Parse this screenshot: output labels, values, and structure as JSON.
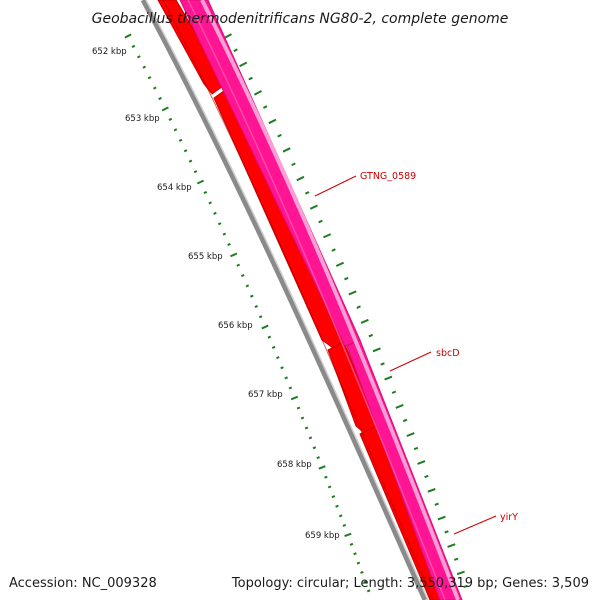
{
  "title": "Geobacillus thermodenitrificans NG80-2, complete genome",
  "footer": {
    "accession": "Accession: NC_009328",
    "summary": "Topology: circular; Length: 3,550,319 bp; Genes: 3,509"
  },
  "kbp_labels": [
    "652 kbp",
    "653 kbp",
    "654 kbp",
    "655 kbp",
    "656 kbp",
    "657 kbp",
    "658 kbp",
    "659 kbp"
  ],
  "gene_labels": [
    "GTNG_0589",
    "sbcD",
    "yirY"
  ],
  "colors": {
    "backbone": "#808080",
    "forward_gene": "#ff0000",
    "forward_gene_dark": "#c00000",
    "reverse_gene": "#ff1493",
    "reverse_gene_light": "#ff80c8",
    "tick": "#1e7d1e",
    "label": "#cc0000"
  }
}
